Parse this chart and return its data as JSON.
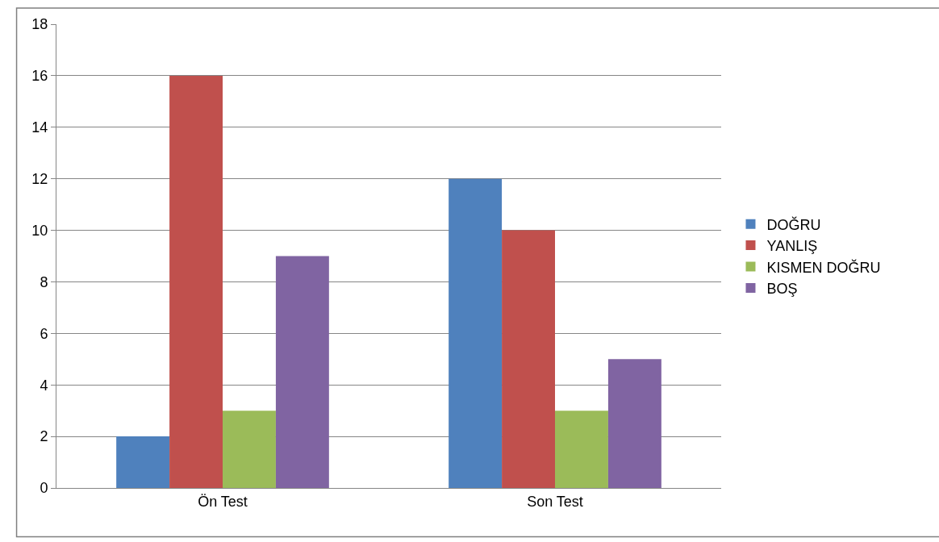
{
  "chart_data": {
    "type": "bar",
    "categories": [
      "Ön Test",
      "Son Test"
    ],
    "series": [
      {
        "name": "DOĞRU",
        "color": "#4f81bd",
        "values": [
          2,
          12
        ]
      },
      {
        "name": "YANLIŞ",
        "color": "#c0504d",
        "values": [
          16,
          10
        ]
      },
      {
        "name": "KISMEN DOĞRU",
        "color": "#9bbb59",
        "values": [
          3,
          3
        ]
      },
      {
        "name": "BOŞ",
        "color": "#8064a2",
        "values": [
          9,
          5
        ]
      }
    ],
    "ylim": [
      0,
      18
    ],
    "yticks": [
      0,
      2,
      4,
      6,
      8,
      10,
      12,
      14,
      16,
      18
    ],
    "grid": "y",
    "legend": "right"
  }
}
